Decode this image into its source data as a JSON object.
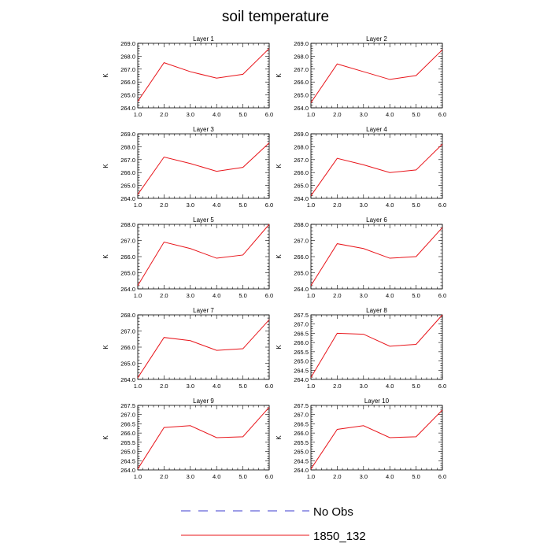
{
  "title": "soil temperature",
  "legend": [
    {
      "label": "No Obs",
      "color": "#3b3bcf",
      "style": "dashed"
    },
    {
      "label": "1850_132",
      "color": "#e8141a",
      "style": "solid"
    }
  ],
  "chart_data": [
    {
      "type": "line",
      "title": "Layer 1",
      "ylabel": "K",
      "xlim": [
        1.0,
        6.0
      ],
      "ylim": [
        264.0,
        269.0
      ],
      "xticks": [
        "1.0",
        "2.0",
        "3.0",
        "4.0",
        "5.0",
        "6.0"
      ],
      "yticks": [
        "264.0",
        "265.0",
        "266.0",
        "267.0",
        "268.0",
        "269.0"
      ],
      "series": [
        {
          "name": "1850_132",
          "x": [
            1,
            2,
            3,
            4,
            5,
            6
          ],
          "y": [
            264.5,
            267.5,
            266.8,
            266.3,
            266.6,
            268.6
          ]
        }
      ]
    },
    {
      "type": "line",
      "title": "Layer 2",
      "ylabel": "K",
      "xlim": [
        1.0,
        6.0
      ],
      "ylim": [
        264.0,
        269.0
      ],
      "xticks": [
        "1.0",
        "2.0",
        "3.0",
        "4.0",
        "5.0",
        "6.0"
      ],
      "yticks": [
        "264.0",
        "265.0",
        "266.0",
        "267.0",
        "268.0",
        "269.0"
      ],
      "series": [
        {
          "name": "1850_132",
          "x": [
            1,
            2,
            3,
            4,
            5,
            6
          ],
          "y": [
            264.4,
            267.4,
            266.8,
            266.2,
            266.5,
            268.5
          ]
        }
      ]
    },
    {
      "type": "line",
      "title": "Layer 3",
      "ylabel": "K",
      "xlim": [
        1.0,
        6.0
      ],
      "ylim": [
        264.0,
        269.0
      ],
      "xticks": [
        "1.0",
        "2.0",
        "3.0",
        "4.0",
        "5.0",
        "6.0"
      ],
      "yticks": [
        "264.0",
        "265.0",
        "266.0",
        "267.0",
        "268.0",
        "269.0"
      ],
      "series": [
        {
          "name": "1850_132",
          "x": [
            1,
            2,
            3,
            4,
            5,
            6
          ],
          "y": [
            264.3,
            267.2,
            266.7,
            266.1,
            266.4,
            268.3
          ]
        }
      ]
    },
    {
      "type": "line",
      "title": "Layer 4",
      "ylabel": "K",
      "xlim": [
        1.0,
        6.0
      ],
      "ylim": [
        264.0,
        269.0
      ],
      "xticks": [
        "1.0",
        "2.0",
        "3.0",
        "4.0",
        "5.0",
        "6.0"
      ],
      "yticks": [
        "264.0",
        "265.0",
        "266.0",
        "267.0",
        "268.0",
        "269.0"
      ],
      "series": [
        {
          "name": "1850_132",
          "x": [
            1,
            2,
            3,
            4,
            5,
            6
          ],
          "y": [
            264.2,
            267.1,
            266.6,
            266.0,
            266.2,
            268.2
          ]
        }
      ]
    },
    {
      "type": "line",
      "title": "Layer 5",
      "ylabel": "K",
      "xlim": [
        1.0,
        6.0
      ],
      "ylim": [
        264.0,
        268.0
      ],
      "xticks": [
        "1.0",
        "2.0",
        "3.0",
        "4.0",
        "5.0",
        "6.0"
      ],
      "yticks": [
        "264.0",
        "265.0",
        "266.0",
        "267.0",
        "268.0"
      ],
      "series": [
        {
          "name": "1850_132",
          "x": [
            1,
            2,
            3,
            4,
            5,
            6
          ],
          "y": [
            264.2,
            266.9,
            266.5,
            265.9,
            266.1,
            268.0
          ]
        }
      ]
    },
    {
      "type": "line",
      "title": "Layer 6",
      "ylabel": "K",
      "xlim": [
        1.0,
        6.0
      ],
      "ylim": [
        264.0,
        268.0
      ],
      "xticks": [
        "1.0",
        "2.0",
        "3.0",
        "4.0",
        "5.0",
        "6.0"
      ],
      "yticks": [
        "264.0",
        "265.0",
        "266.0",
        "267.0",
        "268.0"
      ],
      "series": [
        {
          "name": "1850_132",
          "x": [
            1,
            2,
            3,
            4,
            5,
            6
          ],
          "y": [
            264.2,
            266.8,
            266.5,
            265.9,
            266.0,
            267.8
          ]
        }
      ]
    },
    {
      "type": "line",
      "title": "Layer 7",
      "ylabel": "K",
      "xlim": [
        1.0,
        6.0
      ],
      "ylim": [
        264.0,
        268.0
      ],
      "xticks": [
        "1.0",
        "2.0",
        "3.0",
        "4.0",
        "5.0",
        "6.0"
      ],
      "yticks": [
        "264.0",
        "265.0",
        "266.0",
        "267.0",
        "268.0"
      ],
      "series": [
        {
          "name": "1850_132",
          "x": [
            1,
            2,
            3,
            4,
            5,
            6
          ],
          "y": [
            264.1,
            266.6,
            266.4,
            265.8,
            265.9,
            267.7
          ]
        }
      ]
    },
    {
      "type": "line",
      "title": "Layer 8",
      "ylabel": "K",
      "xlim": [
        1.0,
        6.0
      ],
      "ylim": [
        264.0,
        267.5
      ],
      "xticks": [
        "1.0",
        "2.0",
        "3.0",
        "4.0",
        "5.0",
        "6.0"
      ],
      "yticks": [
        "264.0",
        "264.5",
        "265.0",
        "265.5",
        "266.0",
        "266.5",
        "267.0",
        "267.5"
      ],
      "series": [
        {
          "name": "1850_132",
          "x": [
            1,
            2,
            3,
            4,
            5,
            6
          ],
          "y": [
            264.1,
            266.5,
            266.45,
            265.8,
            265.9,
            267.5
          ]
        }
      ]
    },
    {
      "type": "line",
      "title": "Layer 9",
      "ylabel": "K",
      "xlim": [
        1.0,
        6.0
      ],
      "ylim": [
        264.0,
        267.5
      ],
      "xticks": [
        "1.0",
        "2.0",
        "3.0",
        "4.0",
        "5.0",
        "6.0"
      ],
      "yticks": [
        "264.0",
        "264.5",
        "265.0",
        "265.5",
        "266.0",
        "266.5",
        "267.0",
        "267.5"
      ],
      "series": [
        {
          "name": "1850_132",
          "x": [
            1,
            2,
            3,
            4,
            5,
            6
          ],
          "y": [
            264.05,
            266.3,
            266.4,
            265.75,
            265.8,
            267.4
          ]
        }
      ]
    },
    {
      "type": "line",
      "title": "Layer 10",
      "ylabel": "K",
      "xlim": [
        1.0,
        6.0
      ],
      "ylim": [
        264.0,
        267.5
      ],
      "xticks": [
        "1.0",
        "2.0",
        "3.0",
        "4.0",
        "5.0",
        "6.0"
      ],
      "yticks": [
        "264.0",
        "264.5",
        "265.0",
        "265.5",
        "266.0",
        "266.5",
        "267.0",
        "267.5"
      ],
      "series": [
        {
          "name": "1850_132",
          "x": [
            1,
            2,
            3,
            4,
            5,
            6
          ],
          "y": [
            264.05,
            266.2,
            266.4,
            265.75,
            265.8,
            267.25
          ]
        }
      ]
    }
  ]
}
